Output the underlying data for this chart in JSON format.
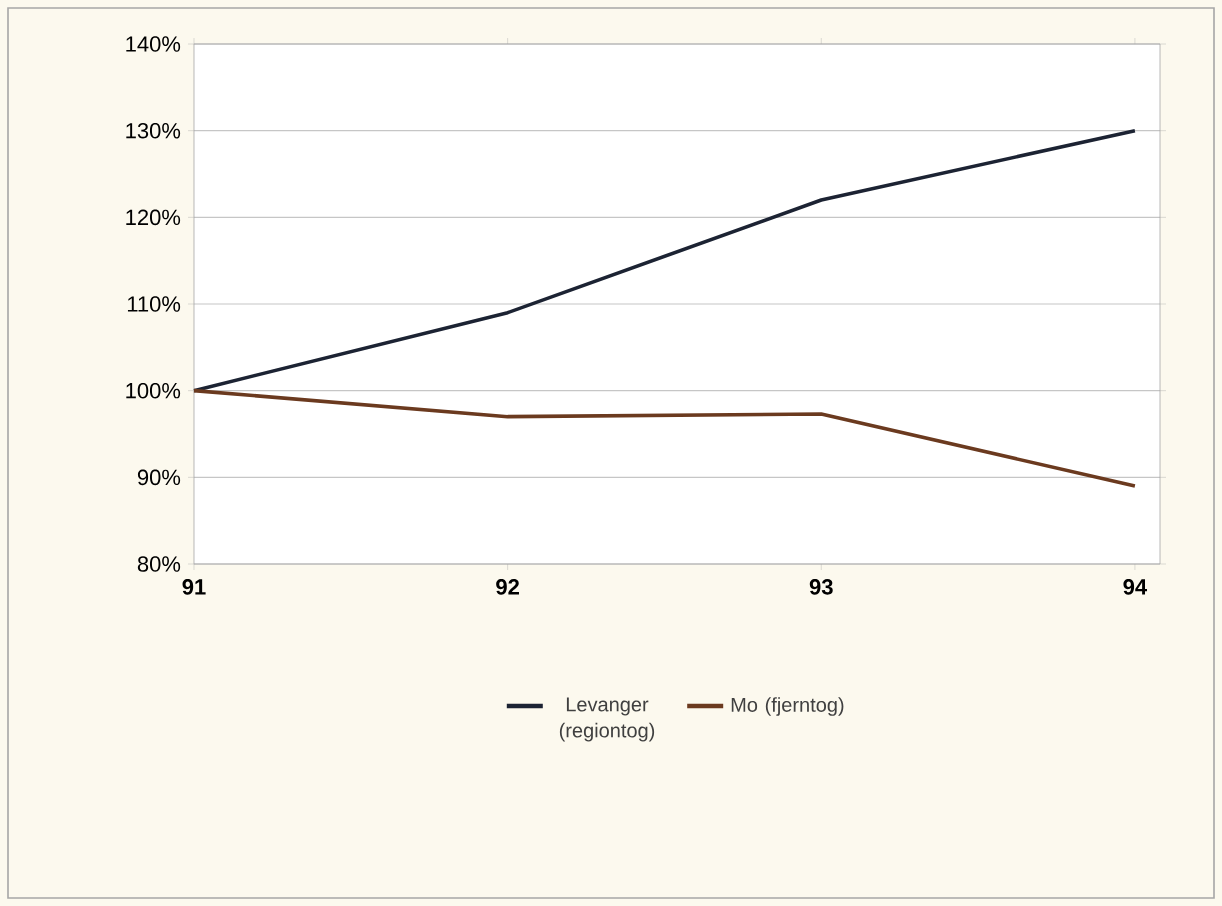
{
  "chart_data": {
    "type": "line",
    "x": [
      91,
      92,
      93,
      94
    ],
    "xlim": [
      91,
      94.08
    ],
    "xticks": [
      91,
      92,
      93,
      94
    ],
    "ylim": [
      80,
      140
    ],
    "yticks": [
      {
        "value": 80,
        "label": "80%"
      },
      {
        "value": 90,
        "label": "90%"
      },
      {
        "value": 100,
        "label": "100%"
      },
      {
        "value": 110,
        "label": "110%"
      },
      {
        "value": 120,
        "label": "120%"
      },
      {
        "value": 130,
        "label": "130%"
      },
      {
        "value": 140,
        "label": "140%"
      }
    ],
    "grid": "y",
    "legend": "bottom",
    "marker": "none",
    "line_style": "solid",
    "series": [
      {
        "name": "Levanger (regiontog)",
        "color": "#1c2333",
        "values": [
          100,
          109,
          122,
          130
        ]
      },
      {
        "name": "Mo (fjerntog)",
        "color": "#6b3a1f",
        "values": [
          100,
          97,
          97.3,
          89
        ]
      }
    ]
  }
}
